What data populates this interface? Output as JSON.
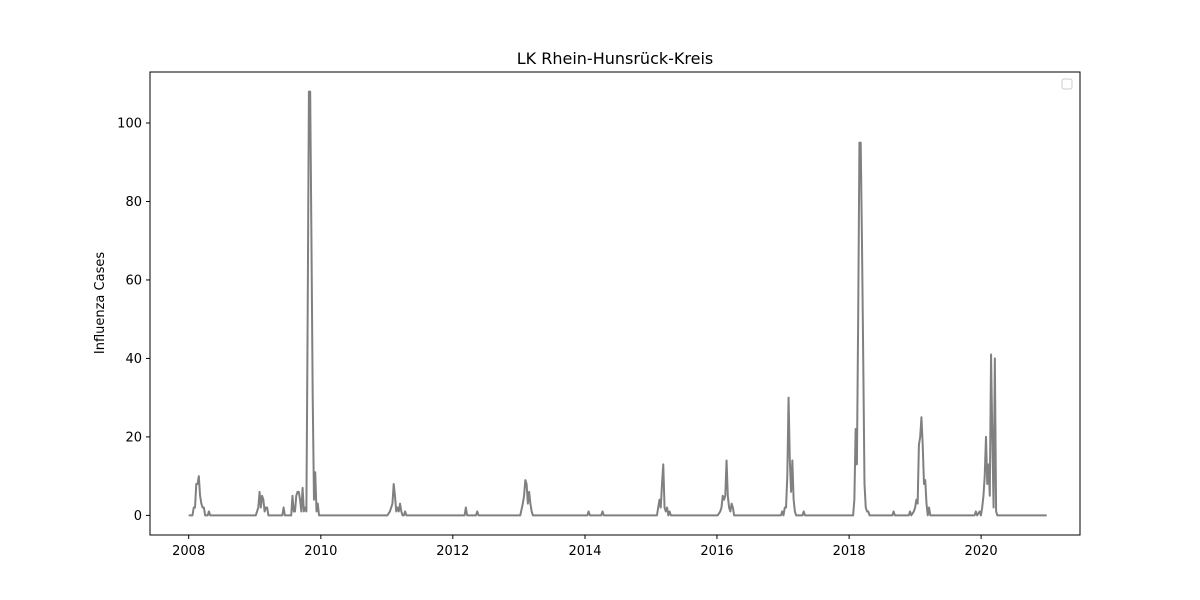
{
  "chart_data": {
    "type": "line",
    "title": "LK Rhein-Hunsrück-Kreis",
    "xlabel": "",
    "ylabel": "Influenza Cases",
    "xlim": [
      "2007-06-01",
      "2021-07-01"
    ],
    "ylim": [
      -5,
      113
    ],
    "x_ticks": [
      "2008",
      "2010",
      "2012",
      "2014",
      "2016",
      "2018",
      "2020"
    ],
    "y_ticks": [
      "0",
      "20",
      "40",
      "60",
      "80",
      "100"
    ],
    "grid": false,
    "legend": {
      "placement": "top-right",
      "entries": []
    },
    "colors": {
      "line": "#808080",
      "axes": "#000000"
    },
    "series": [
      {
        "points": [
          [
            "2008-01-01",
            0
          ],
          [
            "2008-01-22",
            0
          ],
          [
            "2008-01-29",
            2
          ],
          [
            "2008-02-05",
            2
          ],
          [
            "2008-02-12",
            8
          ],
          [
            "2008-02-19",
            8
          ],
          [
            "2008-02-26",
            10
          ],
          [
            "2008-03-04",
            5
          ],
          [
            "2008-03-11",
            3
          ],
          [
            "2008-03-18",
            2
          ],
          [
            "2008-03-25",
            2
          ],
          [
            "2008-04-01",
            0
          ],
          [
            "2008-04-15",
            0
          ],
          [
            "2008-04-22",
            1
          ],
          [
            "2008-04-29",
            0
          ],
          [
            "2009-01-06",
            0
          ],
          [
            "2009-01-20",
            2
          ],
          [
            "2009-01-27",
            6
          ],
          [
            "2009-02-03",
            2
          ],
          [
            "2009-02-10",
            5
          ],
          [
            "2009-02-17",
            4
          ],
          [
            "2009-02-24",
            1
          ],
          [
            "2009-03-03",
            2
          ],
          [
            "2009-03-10",
            2
          ],
          [
            "2009-03-17",
            0
          ],
          [
            "2009-06-02",
            0
          ],
          [
            "2009-06-09",
            2
          ],
          [
            "2009-06-16",
            0
          ],
          [
            "2009-07-21",
            0
          ],
          [
            "2009-07-28",
            5
          ],
          [
            "2009-08-04",
            1
          ],
          [
            "2009-08-11",
            1
          ],
          [
            "2009-08-18",
            5
          ],
          [
            "2009-08-25",
            6
          ],
          [
            "2009-09-01",
            6
          ],
          [
            "2009-09-08",
            4
          ],
          [
            "2009-09-15",
            1
          ],
          [
            "2009-09-22",
            7
          ],
          [
            "2009-09-29",
            1
          ],
          [
            "2009-10-06",
            2
          ],
          [
            "2009-10-13",
            1
          ],
          [
            "2009-10-20",
            50
          ],
          [
            "2009-10-27",
            108
          ],
          [
            "2009-11-03",
            108
          ],
          [
            "2009-11-10",
            70
          ],
          [
            "2009-11-17",
            30
          ],
          [
            "2009-11-24",
            4
          ],
          [
            "2009-12-01",
            11
          ],
          [
            "2009-12-08",
            1
          ],
          [
            "2009-12-15",
            3
          ],
          [
            "2009-12-22",
            0
          ],
          [
            "2011-01-04",
            0
          ],
          [
            "2011-01-18",
            1
          ],
          [
            "2011-01-25",
            2
          ],
          [
            "2011-02-01",
            3
          ],
          [
            "2011-02-08",
            8
          ],
          [
            "2011-02-15",
            5
          ],
          [
            "2011-02-22",
            1
          ],
          [
            "2011-03-01",
            2
          ],
          [
            "2011-03-08",
            1
          ],
          [
            "2011-03-15",
            3
          ],
          [
            "2011-03-22",
            1
          ],
          [
            "2011-03-29",
            0
          ],
          [
            "2011-04-05",
            0
          ],
          [
            "2011-04-12",
            1
          ],
          [
            "2011-04-19",
            0
          ],
          [
            "2012-03-06",
            0
          ],
          [
            "2012-03-13",
            2
          ],
          [
            "2012-03-20",
            0
          ],
          [
            "2012-05-08",
            0
          ],
          [
            "2012-05-15",
            1
          ],
          [
            "2012-05-22",
            0
          ],
          [
            "2013-01-08",
            0
          ],
          [
            "2013-01-22",
            3
          ],
          [
            "2013-01-29",
            5
          ],
          [
            "2013-02-05",
            9
          ],
          [
            "2013-02-12",
            8
          ],
          [
            "2013-02-19",
            3
          ],
          [
            "2013-02-26",
            6
          ],
          [
            "2013-03-05",
            3
          ],
          [
            "2013-03-12",
            1
          ],
          [
            "2013-03-19",
            0
          ],
          [
            "2014-01-14",
            0
          ],
          [
            "2014-01-21",
            1
          ],
          [
            "2014-01-28",
            0
          ],
          [
            "2014-04-01",
            0
          ],
          [
            "2014-04-08",
            1
          ],
          [
            "2014-04-15",
            0
          ],
          [
            "2015-02-03",
            0
          ],
          [
            "2015-02-10",
            2
          ],
          [
            "2015-02-17",
            4
          ],
          [
            "2015-02-24",
            2
          ],
          [
            "2015-03-03",
            8
          ],
          [
            "2015-03-10",
            13
          ],
          [
            "2015-03-17",
            2
          ],
          [
            "2015-03-24",
            1
          ],
          [
            "2015-03-31",
            2
          ],
          [
            "2015-04-07",
            0
          ],
          [
            "2015-04-14",
            1
          ],
          [
            "2015-04-21",
            0
          ],
          [
            "2016-01-05",
            0
          ],
          [
            "2016-01-19",
            1
          ],
          [
            "2016-01-26",
            2
          ],
          [
            "2016-02-02",
            5
          ],
          [
            "2016-02-09",
            4
          ],
          [
            "2016-02-16",
            5
          ],
          [
            "2016-02-23",
            14
          ],
          [
            "2016-03-01",
            5
          ],
          [
            "2016-03-08",
            2
          ],
          [
            "2016-03-15",
            1
          ],
          [
            "2016-03-22",
            3
          ],
          [
            "2016-03-29",
            2
          ],
          [
            "2016-04-05",
            0
          ],
          [
            "2016-12-06",
            0
          ],
          [
            "2016-12-20",
            0
          ],
          [
            "2016-12-27",
            1
          ],
          [
            "2017-01-03",
            0
          ],
          [
            "2017-01-10",
            2
          ],
          [
            "2017-01-17",
            2
          ],
          [
            "2017-01-24",
            10
          ],
          [
            "2017-01-31",
            30
          ],
          [
            "2017-02-07",
            14
          ],
          [
            "2017-02-14",
            6
          ],
          [
            "2017-02-21",
            14
          ],
          [
            "2017-02-28",
            4
          ],
          [
            "2017-03-07",
            1
          ],
          [
            "2017-03-14",
            0
          ],
          [
            "2017-04-18",
            0
          ],
          [
            "2017-04-25",
            1
          ],
          [
            "2017-05-02",
            0
          ],
          [
            "2018-01-09",
            0
          ],
          [
            "2018-01-23",
            0
          ],
          [
            "2018-01-30",
            4
          ],
          [
            "2018-02-06",
            22
          ],
          [
            "2018-02-13",
            13
          ],
          [
            "2018-02-20",
            50
          ],
          [
            "2018-02-27",
            95
          ],
          [
            "2018-03-06",
            95
          ],
          [
            "2018-03-13",
            70
          ],
          [
            "2018-03-20",
            40
          ],
          [
            "2018-03-27",
            8
          ],
          [
            "2018-04-03",
            2
          ],
          [
            "2018-04-10",
            1
          ],
          [
            "2018-04-17",
            1
          ],
          [
            "2018-04-24",
            0
          ],
          [
            "2018-08-28",
            0
          ],
          [
            "2018-09-04",
            1
          ],
          [
            "2018-09-11",
            0
          ],
          [
            "2018-11-27",
            0
          ],
          [
            "2018-12-04",
            1
          ],
          [
            "2018-12-11",
            0
          ],
          [
            "2018-12-25",
            1
          ],
          [
            "2019-01-01",
            2
          ],
          [
            "2019-01-08",
            4
          ],
          [
            "2019-01-15",
            3
          ],
          [
            "2019-01-22",
            18
          ],
          [
            "2019-01-29",
            20
          ],
          [
            "2019-02-05",
            25
          ],
          [
            "2019-02-12",
            18
          ],
          [
            "2019-02-19",
            8
          ],
          [
            "2019-02-26",
            9
          ],
          [
            "2019-03-05",
            3
          ],
          [
            "2019-03-12",
            0
          ],
          [
            "2019-03-19",
            2
          ],
          [
            "2019-03-26",
            0
          ],
          [
            "2019-11-26",
            0
          ],
          [
            "2019-12-03",
            1
          ],
          [
            "2019-12-10",
            0
          ],
          [
            "2019-12-24",
            1
          ],
          [
            "2019-12-31",
            0
          ],
          [
            "2020-01-07",
            2
          ],
          [
            "2020-01-14",
            5
          ],
          [
            "2020-01-21",
            10
          ],
          [
            "2020-01-28",
            20
          ],
          [
            "2020-02-04",
            8
          ],
          [
            "2020-02-11",
            13
          ],
          [
            "2020-02-18",
            5
          ],
          [
            "2020-02-25",
            41
          ],
          [
            "2020-03-03",
            20
          ],
          [
            "2020-03-10",
            2
          ],
          [
            "2020-03-17",
            40
          ],
          [
            "2020-03-24",
            1
          ],
          [
            "2020-03-31",
            0
          ],
          [
            "2020-12-29",
            0
          ]
        ]
      }
    ]
  }
}
